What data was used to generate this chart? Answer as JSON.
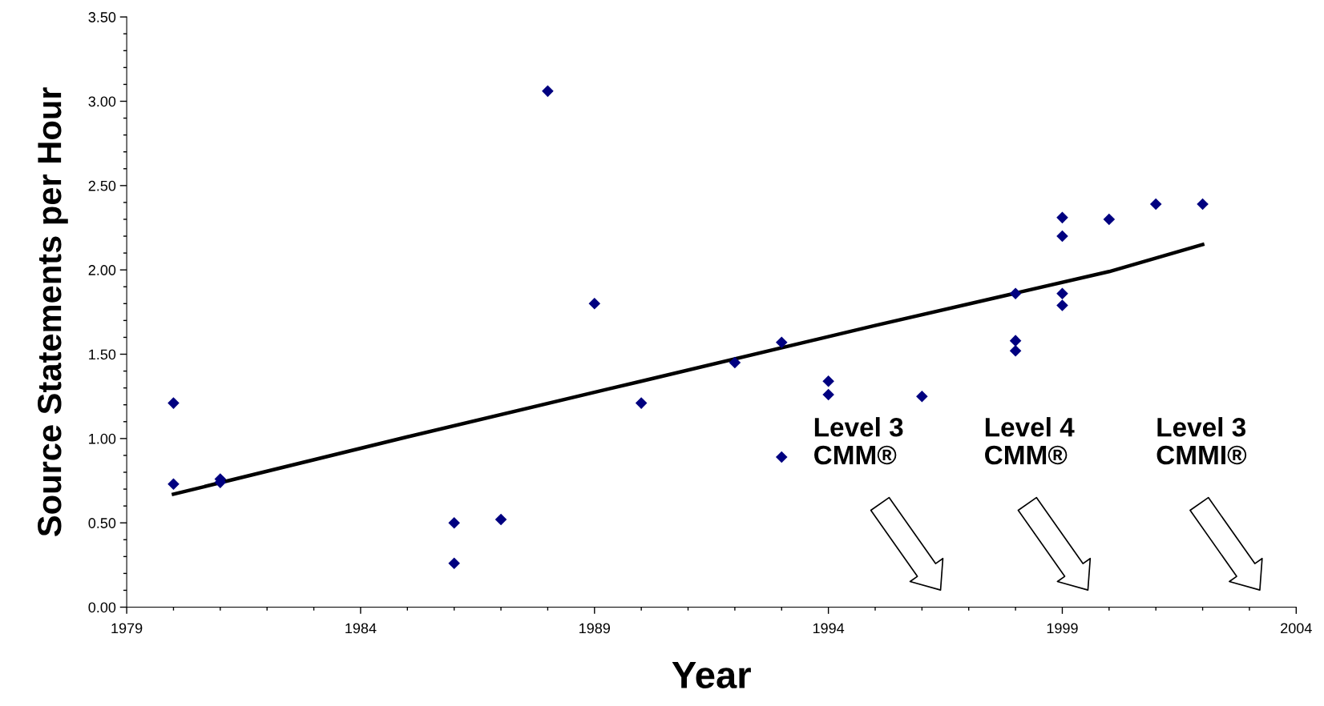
{
  "chart_data": {
    "type": "scatter",
    "xlabel": "Year",
    "ylabel": "Source Statements per Hour",
    "xlim": [
      1979,
      2004
    ],
    "xticks": [
      1979,
      1984,
      1989,
      1994,
      1999,
      2004
    ],
    "ylim": [
      0,
      3.5
    ],
    "yticks": [
      {
        "value": 0,
        "label": "0.00"
      },
      {
        "value": 0.5,
        "label": "0.50"
      },
      {
        "value": 1,
        "label": "1.00"
      },
      {
        "value": 1.5,
        "label": "1.50"
      },
      {
        "value": 2,
        "label": "2.00"
      },
      {
        "value": 2.5,
        "label": "2.50"
      },
      {
        "value": 3,
        "label": "3.00"
      },
      {
        "value": 3.5,
        "label": "3.50"
      }
    ],
    "grid": false,
    "legend": false,
    "series": [
      {
        "marker": "diamond",
        "color": "#000080",
        "x": [
          1980,
          1980,
          1981,
          1981,
          1986,
          1986,
          1987,
          1988,
          1989,
          1990,
          1992,
          1993,
          1993,
          1994,
          1994,
          1996,
          1998,
          1998,
          1998,
          1999,
          1999,
          1999,
          1999,
          2000,
          2001,
          2002
        ],
        "values": [
          0.73,
          1.21,
          0.76,
          0.74,
          0.5,
          0.26,
          0.52,
          3.06,
          1.8,
          1.21,
          1.45,
          1.57,
          0.89,
          1.34,
          1.26,
          1.25,
          1.86,
          1.58,
          1.52,
          2.31,
          2.2,
          1.86,
          1.79,
          2.3,
          2.39,
          2.39
        ]
      },
      {
        "type": "line",
        "marker": "none",
        "line_style": "solid",
        "color": "#000000",
        "x": [
          1980,
          1985,
          1990,
          1995,
          2000,
          2002
        ],
        "values": [
          0.67,
          1.01,
          1.34,
          1.67,
          1.99,
          2.15
        ]
      }
    ],
    "annotations": [
      "Level 3\nCMM®",
      "Level 4\nCMM®",
      "Level 3\nCMMI®"
    ]
  }
}
